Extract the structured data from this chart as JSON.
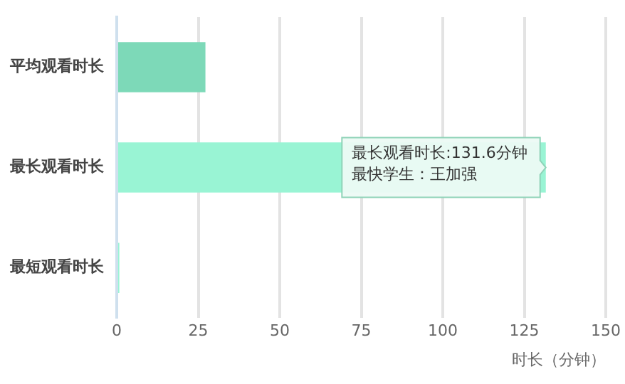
{
  "chart_data": {
    "type": "bar",
    "orientation": "horizontal",
    "categories": [
      "平均观看时长",
      "最长观看时长",
      "最短观看时长"
    ],
    "values": [
      27.2,
      131.6,
      0.8
    ],
    "colors": [
      "#7dd9b8",
      "#99f4d4",
      "#99f4d4"
    ],
    "xlabel": "时长（分钟）",
    "xlim": [
      0,
      150
    ],
    "xticks": [
      0,
      25,
      50,
      75,
      100,
      125,
      150
    ],
    "grid": "x",
    "legend": false,
    "annotations": [
      {
        "text": "最长观看时长:131.6分钟",
        "x": 131.6,
        "y": "最长观看时长"
      },
      "最快学生：王加强"
    ]
  }
}
